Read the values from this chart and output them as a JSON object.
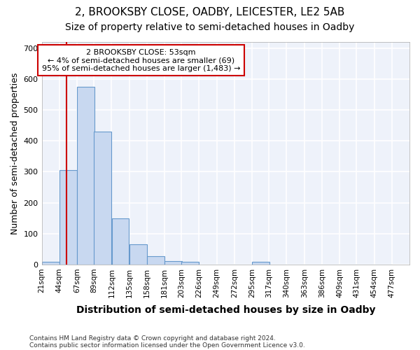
{
  "title_line1": "2, BROOKSBY CLOSE, OADBY, LEICESTER, LE2 5AB",
  "title_line2": "Size of property relative to semi-detached houses in Oadby",
  "xlabel": "Distribution of semi-detached houses by size in Oadby",
  "ylabel": "Number of semi-detached properties",
  "footer_line1": "Contains HM Land Registry data © Crown copyright and database right 2024.",
  "footer_line2": "Contains public sector information licensed under the Open Government Licence v3.0.",
  "annotation_line1": "2 BROOKSBY CLOSE: 53sqm",
  "annotation_line2": "← 4% of semi-detached houses are smaller (69)",
  "annotation_line3": "95% of semi-detached houses are larger (1,483) →",
  "bar_left_edges": [
    21,
    44,
    67,
    89,
    112,
    135,
    158,
    181,
    203,
    226,
    249,
    272,
    295,
    317,
    340,
    363,
    386,
    409,
    431,
    454
  ],
  "bar_heights": [
    8,
    305,
    575,
    430,
    150,
    65,
    28,
    12,
    8,
    0,
    0,
    0,
    8,
    0,
    0,
    0,
    0,
    0,
    0,
    0
  ],
  "bin_width": 23,
  "property_size": 53,
  "bar_color": "#c8d8f0",
  "bar_edge_color": "#6699cc",
  "vline_color": "#cc0000",
  "annotation_box_color": "#cc0000",
  "ylim": [
    0,
    720
  ],
  "yticks": [
    0,
    100,
    200,
    300,
    400,
    500,
    600,
    700
  ],
  "x_labels": [
    "21sqm",
    "44sqm",
    "67sqm",
    "89sqm",
    "112sqm",
    "135sqm",
    "158sqm",
    "181sqm",
    "203sqm",
    "226sqm",
    "249sqm",
    "272sqm",
    "295sqm",
    "317sqm",
    "340sqm",
    "363sqm",
    "386sqm",
    "409sqm",
    "431sqm",
    "454sqm",
    "477sqm"
  ],
  "bg_color": "#eef2fa",
  "grid_color": "#ffffff",
  "title_fontsize": 11,
  "subtitle_fontsize": 10,
  "xlabel_fontsize": 10,
  "ylabel_fontsize": 9
}
